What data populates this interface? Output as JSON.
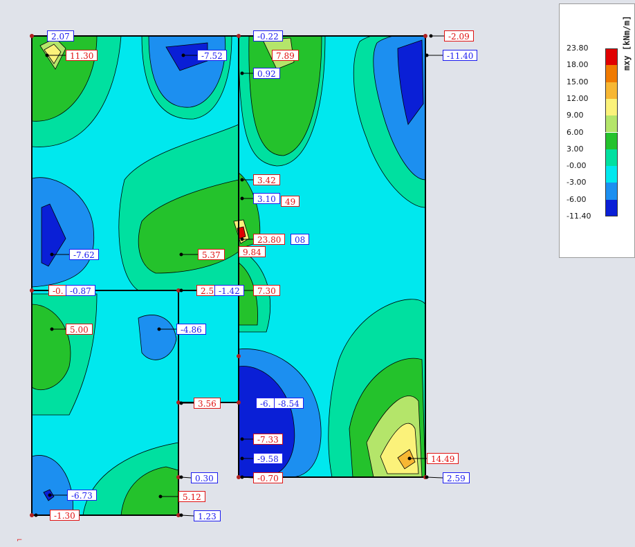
{
  "legend": {
    "unit": "mxy [kNm/m]",
    "levels": [
      "23.80",
      "18.00",
      "15.00",
      "12.00",
      "9.00",
      "6.00",
      "3.00",
      "-0.00",
      "-3.00",
      "-6.00",
      "-11.40"
    ],
    "colors": [
      "#e00000",
      "#f07a00",
      "#f7b733",
      "#fbf27a",
      "#b4e56a",
      "#24c22c",
      "#00e0a0",
      "#00e8ee",
      "#1c8ff0",
      "#0a1fd6"
    ]
  },
  "colors": {
    "positive": "#e01010",
    "negative": "#1a1aef",
    "background": "#e0e3ea"
  },
  "labels": [
    {
      "text": "2.07",
      "sign": "neg"
    },
    {
      "text": "11.30",
      "sign": "pos"
    },
    {
      "text": "-7.52",
      "sign": "neg"
    },
    {
      "text": "-0.22",
      "sign": "neg"
    },
    {
      "text": "7.89",
      "sign": "pos"
    },
    {
      "text": "0.92",
      "sign": "neg"
    },
    {
      "text": "-2.09",
      "sign": "pos"
    },
    {
      "text": "-11.40",
      "sign": "neg"
    },
    {
      "text": "3.42",
      "sign": "pos"
    },
    {
      "text": "3.10",
      "sign": "neg"
    },
    {
      "text": "49",
      "sign": "pos"
    },
    {
      "text": "23.80",
      "sign": "pos"
    },
    {
      "text": "08",
      "sign": "neg"
    },
    {
      "text": "-7.62",
      "sign": "neg"
    },
    {
      "text": "5.37",
      "sign": "pos"
    },
    {
      "text": "9.84",
      "sign": "pos"
    },
    {
      "text": "-0.",
      "sign": "pos"
    },
    {
      "text": "-0.87",
      "sign": "neg"
    },
    {
      "text": "2.5",
      "sign": "pos"
    },
    {
      "text": "-1.42",
      "sign": "neg"
    },
    {
      "text": "7.30",
      "sign": "pos"
    },
    {
      "text": "5.00",
      "sign": "pos"
    },
    {
      "text": "-4.86",
      "sign": "neg"
    },
    {
      "text": "3.56",
      "sign": "pos"
    },
    {
      "text": "-6.",
      "sign": "neg"
    },
    {
      "text": "-8.54",
      "sign": "neg"
    },
    {
      "text": "-7.33",
      "sign": "pos"
    },
    {
      "text": "-9.58",
      "sign": "neg"
    },
    {
      "text": "14.49",
      "sign": "pos"
    },
    {
      "text": "0.30",
      "sign": "neg"
    },
    {
      "text": "-0.70",
      "sign": "pos"
    },
    {
      "text": "2.59",
      "sign": "neg"
    },
    {
      "text": "-6.73",
      "sign": "neg"
    },
    {
      "text": "5.12",
      "sign": "pos"
    },
    {
      "text": "-1.30",
      "sign": "pos"
    },
    {
      "text": "1.23",
      "sign": "neg"
    }
  ]
}
